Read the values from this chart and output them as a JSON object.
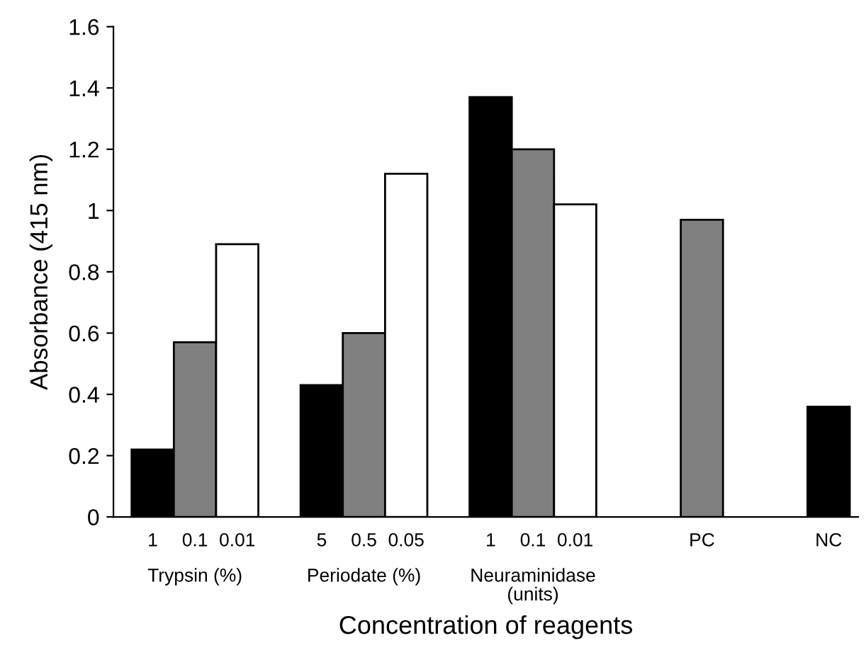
{
  "chart_data": {
    "type": "bar",
    "xlabel": "Concentration of reagents",
    "ylabel": "Absorbance (415 nm)",
    "categories": [
      "1",
      "0.1",
      "0.01",
      null,
      "5",
      "0.5",
      "0.05",
      null,
      "1",
      "0.1",
      "0.01",
      null,
      null,
      "PC",
      null,
      null,
      "NC"
    ],
    "values": [
      0.22,
      0.57,
      0.89,
      null,
      0.43,
      0.6,
      1.12,
      null,
      1.37,
      1.2,
      1.02,
      null,
      null,
      0.97,
      null,
      null,
      0.36
    ],
    "colors": [
      "#000000",
      "#808080",
      "#ffffff",
      null,
      "#000000",
      "#808080",
      "#ffffff",
      null,
      "#000000",
      "#808080",
      "#ffffff",
      null,
      null,
      "#808080",
      null,
      null,
      "#000000"
    ],
    "annotations": [
      "Trypsin (%)",
      "Periodate (%)",
      "Neuraminidase\n(units)"
    ],
    "ylim": [
      0,
      1.6
    ],
    "yticks": [
      0,
      0.2,
      0.4,
      0.6,
      0.8,
      1,
      1.2,
      1.4,
      1.6
    ],
    "grid": false
  }
}
